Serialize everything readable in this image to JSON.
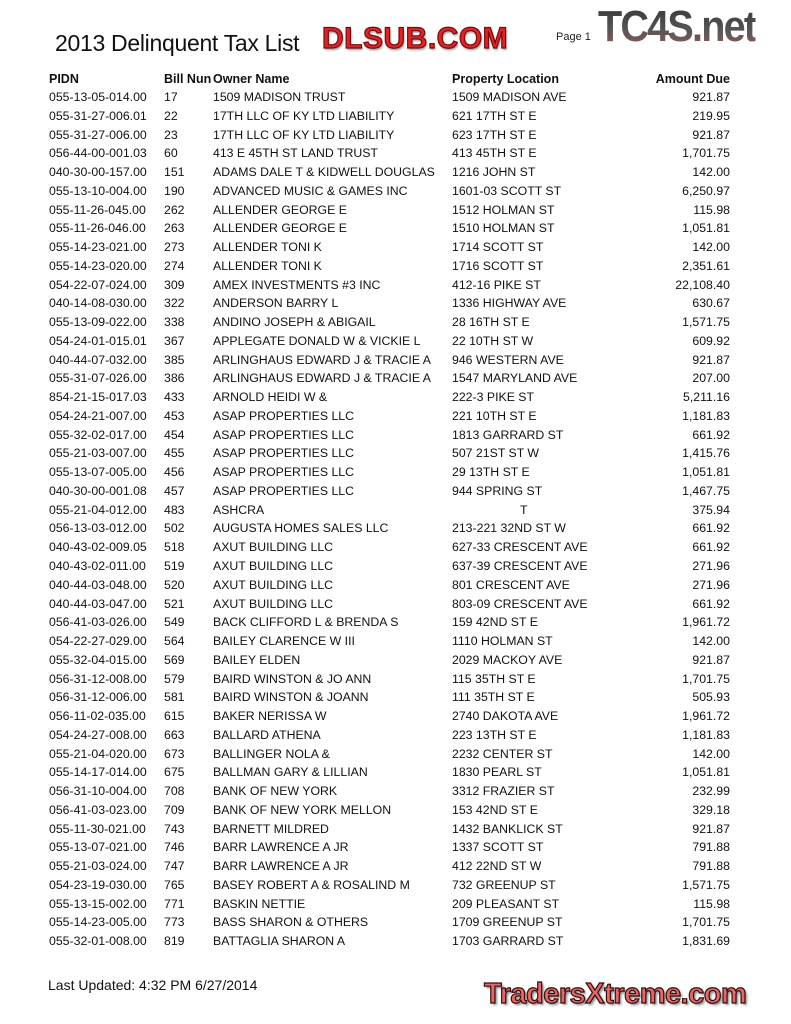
{
  "document": {
    "title": "2013 Delinquent Tax List",
    "page_label": "Page 1",
    "last_updated": "Last Updated: 4:32 PM  6/27/2014"
  },
  "watermarks": {
    "top_logo": "TC4S.net",
    "center_logo": "DLSUB.COM",
    "bottom_logo": "TradersXtreme.com"
  },
  "table": {
    "headers": [
      "PIDN",
      "Bill Nun",
      "Owner Name",
      "Property Location",
      "Amount Due"
    ],
    "rows": [
      [
        "055-13-05-014.00",
        "17",
        "1509 MADISON TRUST",
        "1509 MADISON AVE",
        "921.87"
      ],
      [
        "055-31-27-006.01",
        "22",
        "17TH LLC OF KY LTD LIABILITY",
        "621 17TH ST E",
        "219.95"
      ],
      [
        "055-31-27-006.00",
        "23",
        "17TH LLC OF KY LTD LIABILITY",
        "623 17TH ST E",
        "921.87"
      ],
      [
        "056-44-00-001.03",
        "60",
        "413 E 45TH ST LAND TRUST",
        "413 45TH ST E",
        "1,701.75"
      ],
      [
        "040-30-00-157.00",
        "151",
        "ADAMS DALE T & KIDWELL DOUGLAS",
        "1216 JOHN ST",
        "142.00"
      ],
      [
        "055-13-10-004.00",
        "190",
        "ADVANCED MUSIC & GAMES INC",
        "1601-03 SCOTT ST",
        "6,250.97"
      ],
      [
        "055-11-26-045.00",
        "262",
        "ALLENDER GEORGE E",
        "1512 HOLMAN ST",
        "115.98"
      ],
      [
        "055-11-26-046.00",
        "263",
        "ALLENDER GEORGE E",
        "1510 HOLMAN ST",
        "1,051.81"
      ],
      [
        "055-14-23-021.00",
        "273",
        "ALLENDER TONI K",
        "1714 SCOTT ST",
        "142.00"
      ],
      [
        "055-14-23-020.00",
        "274",
        "ALLENDER TONI K",
        "1716 SCOTT ST",
        "2,351.61"
      ],
      [
        "054-22-07-024.00",
        "309",
        "AMEX INVESTMENTS #3 INC",
        "412-16 PIKE ST",
        "22,108.40"
      ],
      [
        "040-14-08-030.00",
        "322",
        "ANDERSON BARRY L",
        "1336 HIGHWAY AVE",
        "630.67"
      ],
      [
        "055-13-09-022.00",
        "338",
        "ANDINO JOSEPH & ABIGAIL",
        "28 16TH ST E",
        "1,571.75"
      ],
      [
        "054-24-01-015.01",
        "367",
        "APPLEGATE DONALD W & VICKIE L",
        "22 10TH ST W",
        "609.92"
      ],
      [
        "040-44-07-032.00",
        "385",
        "ARLINGHAUS EDWARD J & TRACIE A",
        "946 WESTERN AVE",
        "921.87"
      ],
      [
        "055-31-07-026.00",
        "386",
        "ARLINGHAUS EDWARD J & TRACIE A",
        "1547 MARYLAND AVE",
        "207.00"
      ],
      [
        "854-21-15-017.03",
        "433",
        "ARNOLD HEIDI W  &",
        "222-3 PIKE ST",
        "5,211.16"
      ],
      [
        "054-24-21-007.00",
        "453",
        "ASAP PROPERTIES LLC",
        "221 10TH ST E",
        "1,181.83"
      ],
      [
        "055-32-02-017.00",
        "454",
        "ASAP PROPERTIES LLC",
        "1813 GARRARD ST",
        "661.92"
      ],
      [
        "055-21-03-007.00",
        "455",
        "ASAP PROPERTIES LLC",
        "507 21ST ST W",
        "1,415.76"
      ],
      [
        "055-13-07-005.00",
        "456",
        "ASAP PROPERTIES LLC",
        "29 13TH ST E",
        "1,051.81"
      ],
      [
        "040-30-00-001.08",
        "457",
        "ASAP PROPERTIES LLC",
        "944 SPRING ST",
        "1,467.75"
      ],
      [
        "055-21-04-012.00",
        "483",
        "ASHCRA",
        "T",
        "375.94"
      ],
      [
        "056-13-03-012.00",
        "502",
        "AUGUSTA HOMES SALES LLC",
        "213-221 32ND ST W",
        "661.92"
      ],
      [
        "040-43-02-009.05",
        "518",
        "AXUT BUILDING LLC",
        "627-33 CRESCENT AVE",
        "661.92"
      ],
      [
        "040-43-02-011.00",
        "519",
        "AXUT BUILDING LLC",
        "637-39 CRESCENT AVE",
        "271.96"
      ],
      [
        "040-44-03-048.00",
        "520",
        "AXUT BUILDING LLC",
        "801 CRESCENT AVE",
        "271.96"
      ],
      [
        "040-44-03-047.00",
        "521",
        "AXUT BUILDING LLC",
        "803-09 CRESCENT AVE",
        "661.92"
      ],
      [
        "056-41-03-026.00",
        "549",
        "BACK CLIFFORD L & BRENDA S",
        "159 42ND ST E",
        "1,961.72"
      ],
      [
        "054-22-27-029.00",
        "564",
        "BAILEY CLARENCE W III",
        "1110 HOLMAN ST",
        "142.00"
      ],
      [
        "055-32-04-015.00",
        "569",
        "BAILEY ELDEN",
        "2029 MACKOY AVE",
        "921.87"
      ],
      [
        "056-31-12-008.00",
        "579",
        "BAIRD WINSTON & JO ANN",
        "115 35TH ST E",
        "1,701.75"
      ],
      [
        "056-31-12-006.00",
        "581",
        "BAIRD WINSTON & JOANN",
        "111 35TH ST E",
        "505.93"
      ],
      [
        "056-11-02-035.00",
        "615",
        "BAKER NERISSA W",
        "2740 DAKOTA AVE",
        "1,961.72"
      ],
      [
        "054-24-27-008.00",
        "663",
        "BALLARD ATHENA",
        "223 13TH ST E",
        "1,181.83"
      ],
      [
        "055-21-04-020.00",
        "673",
        "BALLINGER NOLA  &",
        "2232 CENTER ST",
        "142.00"
      ],
      [
        "055-14-17-014.00",
        "675",
        "BALLMAN GARY & LILLIAN",
        "1830 PEARL ST",
        "1,051.81"
      ],
      [
        "056-31-10-004.00",
        "708",
        "BANK OF NEW YORK",
        "3312 FRAZIER ST",
        "232.99"
      ],
      [
        "056-41-03-023.00",
        "709",
        "BANK OF NEW YORK MELLON",
        "153 42ND ST E",
        "329.18"
      ],
      [
        "055-11-30-021.00",
        "743",
        "BARNETT MILDRED",
        "1432 BANKLICK ST",
        "921.87"
      ],
      [
        "055-13-07-021.00",
        "746",
        "BARR LAWRENCE A JR",
        "1337 SCOTT ST",
        "791.88"
      ],
      [
        "055-21-03-024.00",
        "747",
        "BARR LAWRENCE A JR",
        "412 22ND ST W",
        "791.88"
      ],
      [
        "054-23-19-030.00",
        "765",
        "BASEY ROBERT A & ROSALIND M",
        "732 GREENUP ST",
        "1,571.75"
      ],
      [
        "055-13-15-002.00",
        "771",
        "BASKIN NETTIE",
        "209 PLEASANT ST",
        "115.98"
      ],
      [
        "055-14-23-005.00",
        "773",
        "BASS SHARON & OTHERS",
        "1709 GREENUP ST",
        "1,701.75"
      ],
      [
        "055-32-01-008.00",
        "819",
        "BATTAGLIA SHARON A",
        "1703 GARRARD ST",
        "1,831.69"
      ]
    ]
  }
}
